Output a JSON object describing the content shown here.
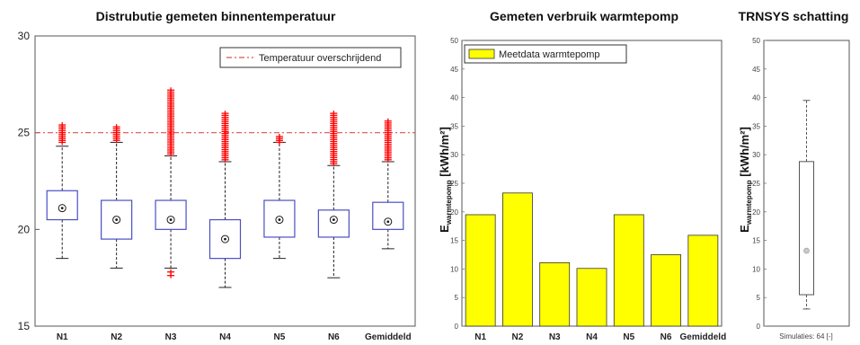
{
  "chart_data": [
    {
      "type": "boxplot",
      "title": "Distrubutie gemeten binnentemperatuur",
      "categories": [
        "N1",
        "N2",
        "N3",
        "N4",
        "N5",
        "N6",
        "Gemiddeld"
      ],
      "ylim": [
        15,
        30
      ],
      "yticks": [
        "15",
        "20",
        "25",
        "30"
      ],
      "threshold": {
        "value": 25,
        "label": "Temperatuur overschrijdend",
        "color": "#d9534f"
      },
      "box_color": "#4a4fc4",
      "median_color": "#1a1a1a",
      "outlier_color": "#ff0000",
      "boxes": [
        {
          "q1": 20.5,
          "median": 21.1,
          "q3": 22.0,
          "whisker_low": 18.5,
          "whisker_high": 24.3,
          "outlier_low_max": null,
          "outlier_high_min": 24.5,
          "outlier_high_max": 25.4
        },
        {
          "q1": 19.5,
          "median": 20.5,
          "q3": 21.5,
          "whisker_low": 18.0,
          "whisker_high": 24.5,
          "outlier_low_max": null,
          "outlier_high_min": 24.6,
          "outlier_high_max": 25.3
        },
        {
          "q1": 20.0,
          "median": 20.5,
          "q3": 21.5,
          "whisker_low": 18.0,
          "whisker_high": 23.8,
          "outlier_low_max": 17.8,
          "outlier_high_min": 23.9,
          "outlier_high_max": 27.2
        },
        {
          "q1": 18.5,
          "median": 19.5,
          "q3": 20.5,
          "whisker_low": 17.0,
          "whisker_high": 23.5,
          "outlier_low_max": null,
          "outlier_high_min": 23.6,
          "outlier_high_max": 26.0
        },
        {
          "q1": 19.6,
          "median": 20.5,
          "q3": 21.5,
          "whisker_low": 18.5,
          "whisker_high": 24.5,
          "outlier_low_max": null,
          "outlier_high_min": 24.5,
          "outlier_high_max": 24.8
        },
        {
          "q1": 19.6,
          "median": 20.5,
          "q3": 21.0,
          "whisker_low": 17.5,
          "whisker_high": 23.3,
          "outlier_low_max": null,
          "outlier_high_min": 23.4,
          "outlier_high_max": 26.0
        },
        {
          "q1": 20.0,
          "median": 20.4,
          "q3": 21.4,
          "whisker_low": 19.0,
          "whisker_high": 23.5,
          "outlier_low_max": null,
          "outlier_high_min": 23.6,
          "outlier_high_max": 25.6
        }
      ]
    },
    {
      "type": "bar",
      "title": "Gemeten verbruik warmtepomp",
      "categories": [
        "N1",
        "N2",
        "N3",
        "N4",
        "N5",
        "N6",
        "Gemiddeld"
      ],
      "values": [
        19.5,
        23.3,
        11.1,
        10.1,
        19.5,
        12.5,
        15.9
      ],
      "ylim": [
        0,
        50
      ],
      "yticks": [
        "0",
        "5",
        "10",
        "15",
        "20",
        "25",
        "30",
        "35",
        "40",
        "45",
        "50"
      ],
      "ylabel_main": "E",
      "ylabel_sub": "warmtepomp",
      "ylabel_unit": " [kWh/m²]",
      "legend": "Meetdata warmtepomp",
      "bar_color": "#ffff00"
    },
    {
      "type": "boxplot",
      "title": "TRNSYS schatting",
      "xlabel": "Simulaties: 64 [-]",
      "ylim": [
        0,
        50
      ],
      "yticks": [
        "0",
        "5",
        "10",
        "15",
        "20",
        "25",
        "30",
        "35",
        "40",
        "45",
        "50"
      ],
      "ylabel_main": "E",
      "ylabel_sub": "warmtepomp",
      "ylabel_unit": " [kWh/m²]",
      "box": {
        "q1": 5.5,
        "median": 13.2,
        "q3": 28.8,
        "whisker_low": 3.0,
        "whisker_high": 39.5
      }
    }
  ]
}
